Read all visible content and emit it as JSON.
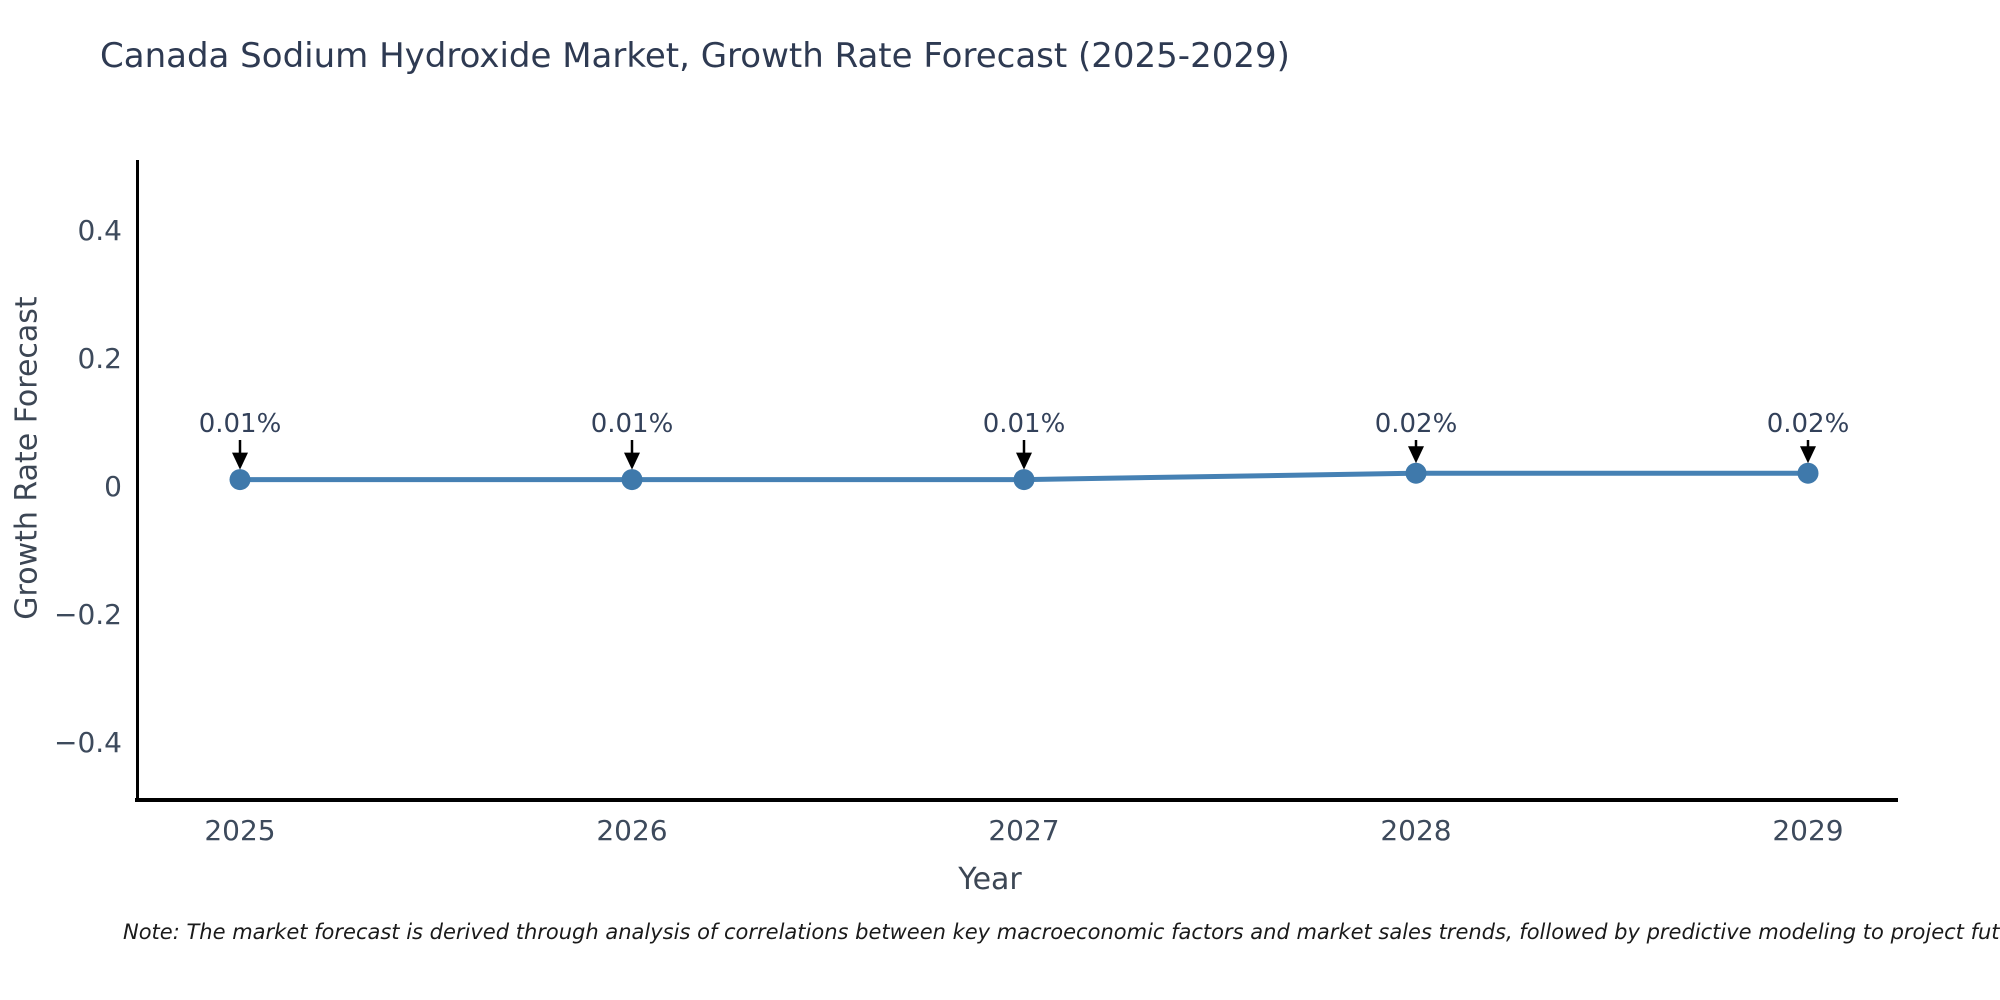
{
  "chart_data": {
    "type": "line",
    "title": "Canada Sodium Hydroxide Market, Growth Rate Forecast (2025-2029)",
    "xlabel": "Year",
    "ylabel": "Growth Rate Forecast",
    "x": [
      2025,
      2026,
      2027,
      2028,
      2029
    ],
    "series": [
      {
        "name": "Growth Rate Forecast",
        "values": [
          0.01,
          0.01,
          0.01,
          0.02,
          0.02
        ],
        "point_labels": [
          "0.01%",
          "0.01%",
          "0.01%",
          "0.02%",
          "0.02%"
        ]
      }
    ],
    "xticks": [
      "2025",
      "2026",
      "2027",
      "2028",
      "2029"
    ],
    "yticks": [
      {
        "value": 0.4,
        "label": "0.4"
      },
      {
        "value": 0.2,
        "label": "0.2"
      },
      {
        "value": 0,
        "label": "0"
      },
      {
        "value": -0.2,
        "label": "−0.2"
      },
      {
        "value": -0.4,
        "label": "−0.4"
      }
    ],
    "ylim": [
      -0.5,
      0.5
    ],
    "grid": false,
    "legend_position": "none",
    "annotation_style": "value label above point with downward black arrow",
    "note": "Note: The market forecast is derived through analysis of correlations between key macroeconomic factors and market sales trends, followed by predictive modeling to project future sales.",
    "colors": {
      "line": "#4681b4",
      "marker": "#3f79ab",
      "axis_spine": "#000000",
      "arrow": "#000000",
      "title_text": "#2e3a52",
      "tick_text": "#3d4a5c",
      "note_text": "#1a1a1a",
      "background": "#ffffff"
    }
  }
}
